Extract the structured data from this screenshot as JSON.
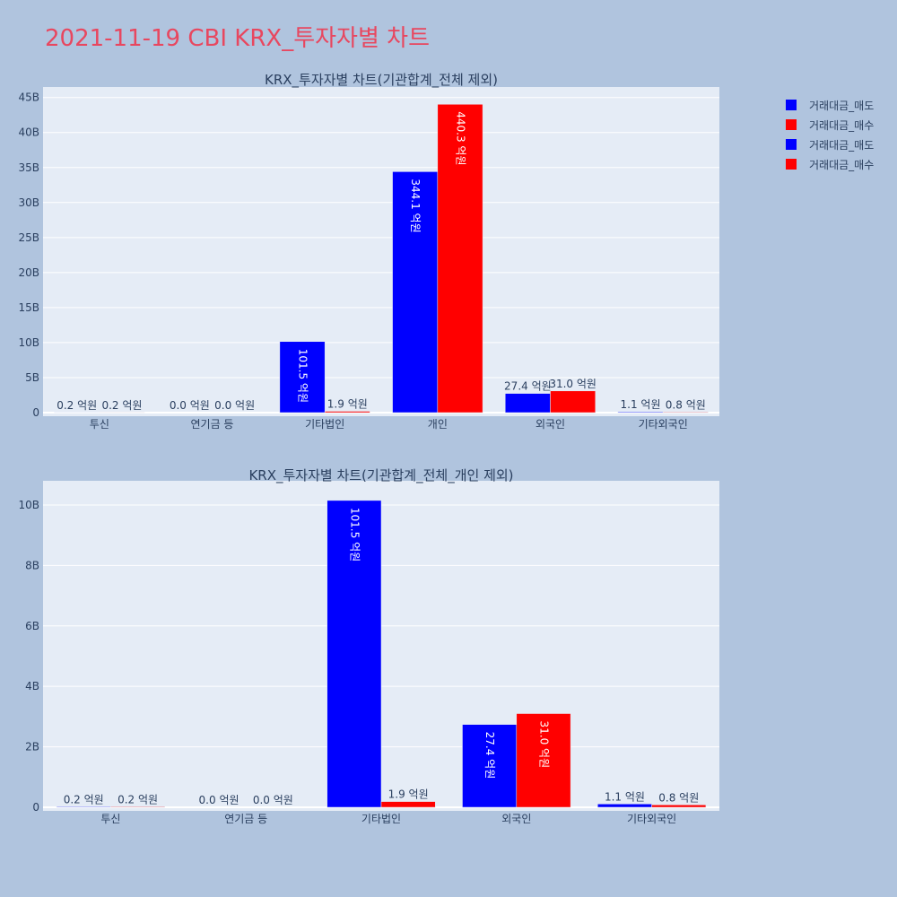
{
  "title": "2021-11-19 CBI KRX_투자자별 차트",
  "colors": {
    "sell": "#0000ff",
    "buy": "#ff0000",
    "title": "#e8475f",
    "plot_bg": "#e5ecf6",
    "page_bg": "#b0c4de"
  },
  "legend": [
    {
      "label": "거래대금_매도",
      "color": "#0000ff"
    },
    {
      "label": "거래대금_매수",
      "color": "#ff0000"
    },
    {
      "label": "거래대금_매도",
      "color": "#0000ff"
    },
    {
      "label": "거래대금_매수",
      "color": "#ff0000"
    }
  ],
  "chart_data": [
    {
      "type": "bar",
      "title": "KRX_투자자별 차트(기관합계_전체 제외)",
      "categories": [
        "투신",
        "연기금 등",
        "기타법인",
        "개인",
        "외국인",
        "기타외국인"
      ],
      "series": [
        {
          "name": "거래대금_매도",
          "values": [
            0.02,
            0.0,
            10.15,
            34.41,
            2.74,
            0.11
          ],
          "labels": [
            "0.2 억원",
            "0.0 억원",
            "101.5 억원",
            "344.1 억원",
            "27.4 억원",
            "1.1 억원"
          ]
        },
        {
          "name": "거래대금_매수",
          "values": [
            0.02,
            0.0,
            0.19,
            44.03,
            3.1,
            0.08
          ],
          "labels": [
            "0.2 억원",
            "0.0 억원",
            "1.9 억원",
            "440.3 억원",
            "31.0 억원",
            "0.8 억원"
          ]
        }
      ],
      "ylim": [
        0,
        46.5
      ],
      "yticks": [
        0,
        5,
        10,
        15,
        20,
        25,
        30,
        35,
        40,
        45
      ],
      "ytick_labels": [
        "0",
        "5B",
        "10B",
        "15B",
        "20B",
        "25B",
        "30B",
        "35B",
        "40B",
        "45B"
      ]
    },
    {
      "type": "bar",
      "title": "KRX_투자자별 차트(기관합계_전체_개인 제외)",
      "categories": [
        "투신",
        "연기금 등",
        "기타법인",
        "외국인",
        "기타외국인"
      ],
      "series": [
        {
          "name": "거래대금_매도",
          "values": [
            0.02,
            0.0,
            10.15,
            2.74,
            0.11
          ],
          "labels": [
            "0.2 억원",
            "0.0 억원",
            "101.5 억원",
            "27.4 억원",
            "1.1 억원"
          ]
        },
        {
          "name": "거래대금_매수",
          "values": [
            0.02,
            0.0,
            0.19,
            3.1,
            0.08
          ],
          "labels": [
            "0.2 억원",
            "0.0 억원",
            "1.9 억원",
            "31.0 억원",
            "0.8 억원"
          ]
        }
      ],
      "ylim": [
        0,
        10.8
      ],
      "yticks": [
        0,
        2,
        4,
        6,
        8,
        10
      ],
      "ytick_labels": [
        "0",
        "2B",
        "4B",
        "6B",
        "8B",
        "10B"
      ]
    }
  ]
}
